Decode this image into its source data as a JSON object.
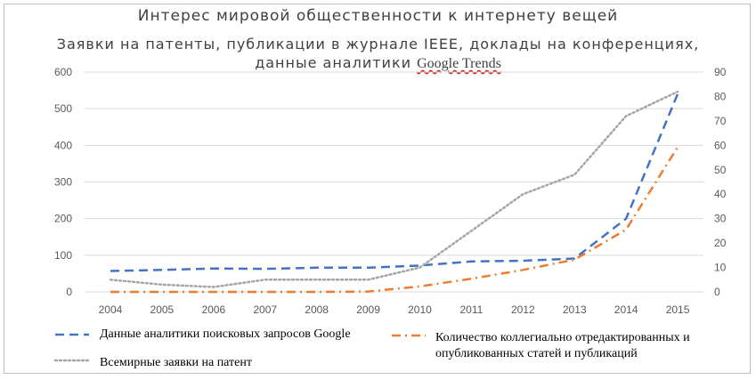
{
  "title": "Интерес мировой общественности к интернету вещей",
  "subtitle_line1": "Заявки на патенты, публикации в журнале IEEE, доклады на конференциях,",
  "subtitle_line2_prefix": "данные аналитики",
  "subtitle_line2_brand": "Google Trends",
  "colors": {
    "google": "#4472C4",
    "publications": "#ED7D31",
    "patents": "#A5A5A5",
    "grid": "#d9d9d9"
  },
  "chart_data": {
    "type": "line",
    "categories": [
      "2004",
      "2005",
      "2006",
      "2007",
      "2008",
      "2009",
      "2010",
      "2011",
      "2012",
      "2013",
      "2014",
      "2015"
    ],
    "y_left": {
      "min": 0,
      "max": 600,
      "ticks": [
        "0",
        "100",
        "200",
        "300",
        "400",
        "500",
        "600"
      ]
    },
    "y_right": {
      "min": 0,
      "max": 90,
      "ticks": [
        "0",
        "10",
        "20",
        "30",
        "40",
        "50",
        "60",
        "70",
        "80",
        "90"
      ]
    },
    "grid": true,
    "legend_position": "bottom",
    "series": [
      {
        "name": "Данные аналитики поисковых запросов Google",
        "axis": "left",
        "style": "dash",
        "color_key": "google",
        "values": [
          57,
          60,
          64,
          63,
          66,
          66,
          72,
          83,
          85,
          91,
          200,
          540
        ]
      },
      {
        "name": "Количество коллегиально отредактированных и опубликованных статей и публикаций",
        "axis": "left",
        "style": "dashdot",
        "color_key": "publications",
        "values": [
          0,
          0,
          0,
          0,
          0,
          1,
          15,
          36,
          60,
          88,
          170,
          395
        ]
      },
      {
        "name": "Всемирные заявки на патент",
        "axis": "right",
        "style": "dot",
        "color_key": "patents",
        "values": [
          5,
          3,
          2,
          5,
          5,
          5,
          10,
          25,
          40,
          48,
          72,
          82
        ]
      }
    ]
  },
  "legend": {
    "google": "Данные аналитики поисковых запросов Google",
    "publications_line1": "Количество коллегиально отредактированных и",
    "publications_line2": "опубликованных статей и публикаций",
    "patents": "Всемирные заявки на патент"
  }
}
